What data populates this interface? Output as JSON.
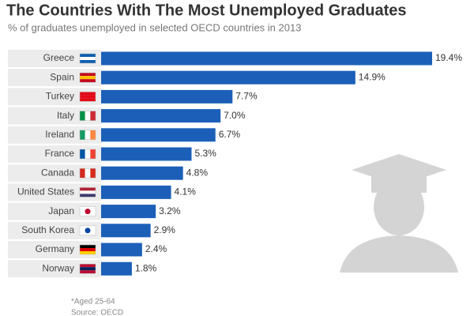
{
  "chart_data": {
    "type": "bar",
    "orientation": "horizontal",
    "title": "The Countries With The Most Unemployed Graduates",
    "subtitle": "% of graduates unemployed in selected OECD countries in 2013",
    "categories": [
      "Greece",
      "Spain",
      "Turkey",
      "Italy",
      "Ireland",
      "France",
      "Canada",
      "United States",
      "Japan",
      "South Korea",
      "Germany",
      "Norway"
    ],
    "values": [
      19.4,
      14.9,
      7.7,
      7.0,
      6.7,
      5.3,
      4.8,
      4.1,
      3.2,
      2.9,
      2.4,
      1.8
    ],
    "value_labels": [
      "19.4%",
      "14.9%",
      "7.7%",
      "7.0%",
      "6.7%",
      "5.3%",
      "4.8%",
      "4.1%",
      "3.2%",
      "2.9%",
      "2.4%",
      "1.8%"
    ],
    "color": "#1c5fb8",
    "footnote": "*Aged 25-64",
    "source": "Source: OECD"
  }
}
